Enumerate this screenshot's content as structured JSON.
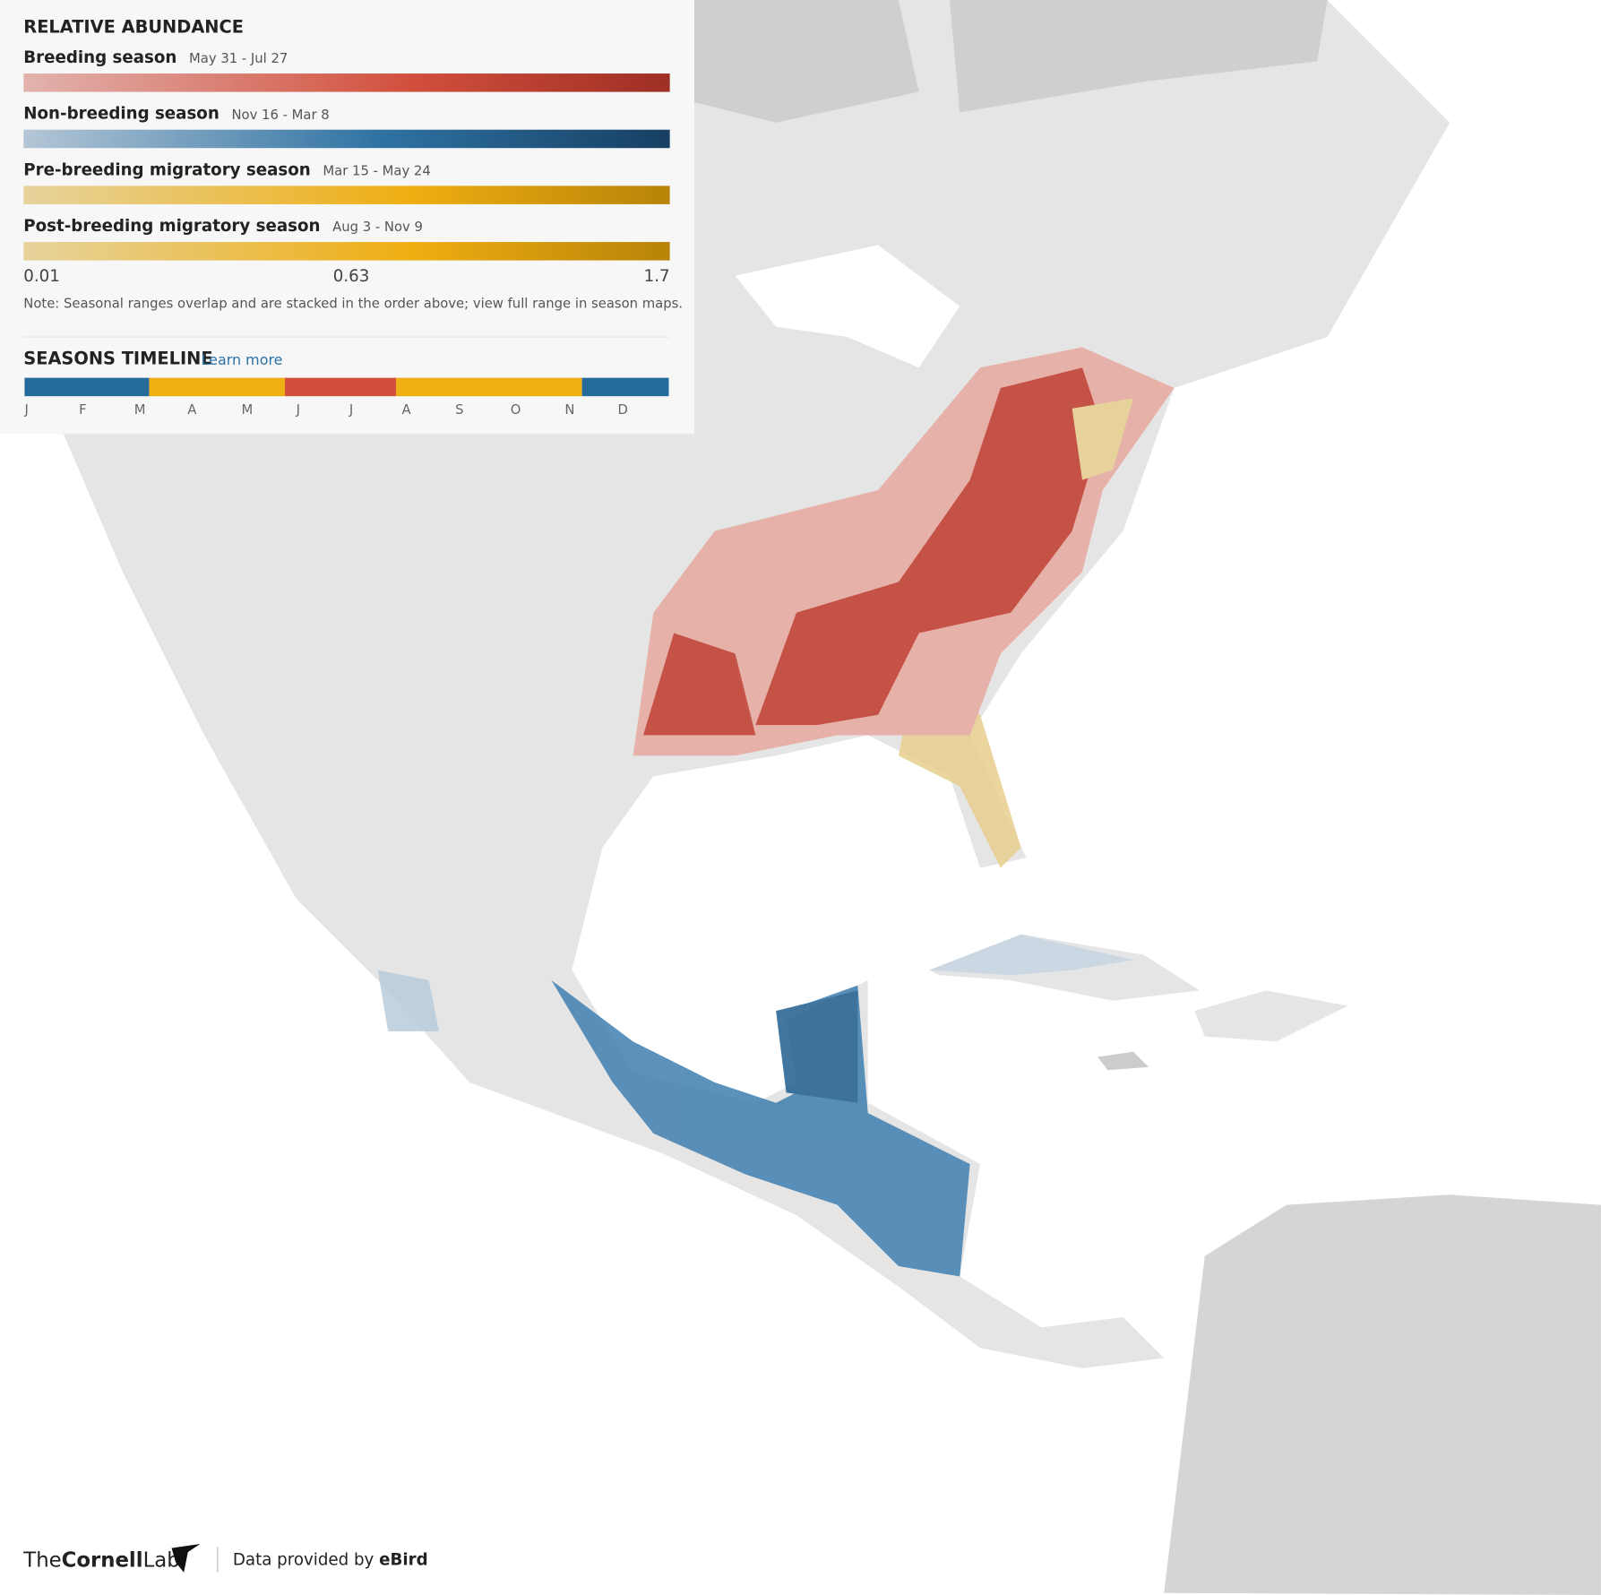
{
  "legend": {
    "title": "RELATIVE ABUNDANCE",
    "seasons": [
      {
        "name": "Breeding season",
        "dates": "May 31 - Jul 27"
      },
      {
        "name": "Non-breeding season",
        "dates": "Nov 16 - Mar 8"
      },
      {
        "name": "Pre-breeding migratory season",
        "dates": "Mar 15 - May 24"
      },
      {
        "name": "Post-breeding migratory season",
        "dates": "Aug 3 - Nov 9"
      }
    ],
    "scale_labels": [
      0.01,
      0.63,
      1.7
    ],
    "note": "Note: Seasonal ranges overlap and are stacked in the order above; view full range in season maps."
  },
  "timeline": {
    "title": "SEASONS TIMELINE",
    "link": "Learn more",
    "months": [
      "J",
      "F",
      "M",
      "A",
      "M",
      "J",
      "J",
      "A",
      "S",
      "O",
      "N",
      "D"
    ]
  },
  "footer": {
    "logo": [
      "The",
      "Cornell",
      "Lab"
    ],
    "credit": "Data provided by",
    "source": "eBird"
  }
}
